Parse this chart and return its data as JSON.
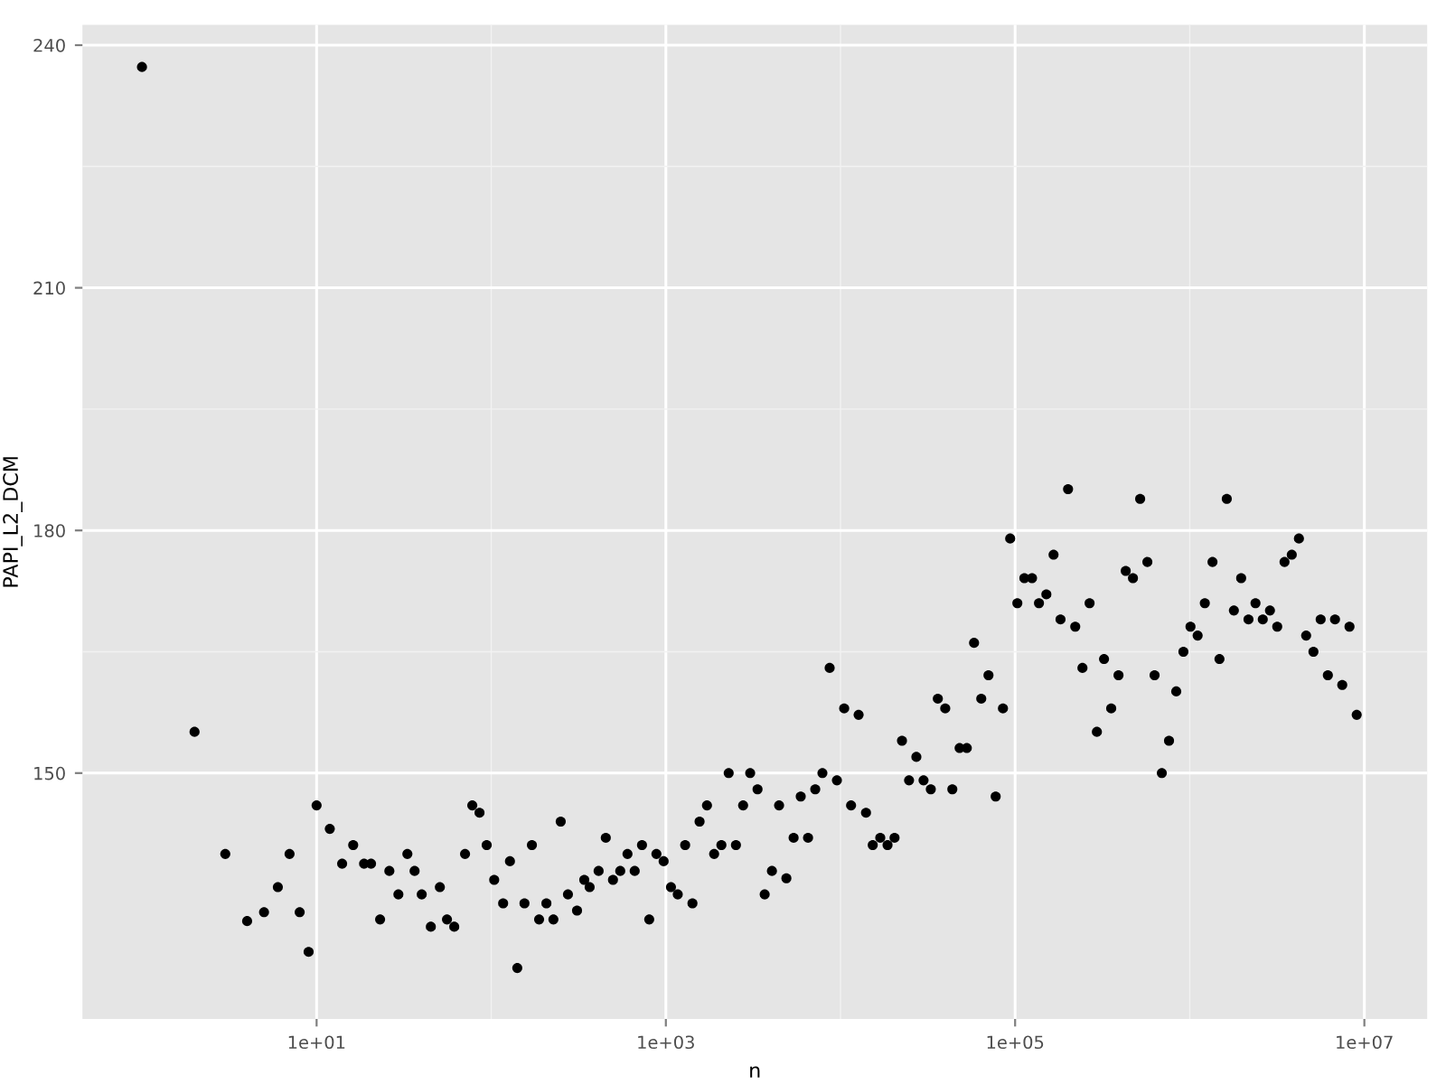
{
  "chart_data": {
    "type": "scatter",
    "xlabel": "n",
    "ylabel": "PAPI_L2_DCM",
    "log": "x",
    "grid": true,
    "marker": "circle",
    "xlim": [
      0.456,
      22900000
    ],
    "ylim": [
      119.6,
      242.5
    ],
    "xticks": [
      {
        "value": 10,
        "label": "1e+01"
      },
      {
        "value": 1000,
        "label": "1e+03"
      },
      {
        "value": 100000,
        "label": "1e+05"
      },
      {
        "value": 10000000,
        "label": "1e+07"
      }
    ],
    "yticks": [
      150,
      180,
      210,
      240
    ],
    "series": [
      {
        "color": "#000000",
        "x": [
          1,
          2,
          3,
          4,
          5,
          6,
          7,
          8,
          9,
          10,
          11.9,
          14.0,
          16.2,
          18.7,
          20.5,
          23.1,
          26.1,
          29.4,
          33.1,
          36.4,
          40.0,
          45.1,
          50.8,
          55.8,
          61.4,
          70.8,
          77.9,
          85.7,
          94.2,
          104,
          117,
          128,
          141,
          155,
          171,
          188,
          207,
          227,
          250,
          275,
          310,
          341,
          366,
          412,
          453,
          498,
          548,
          603,
          663,
          730,
          803,
          883,
          971,
          1070,
          1170,
          1290,
          1420,
          1560,
          1720,
          1890,
          2080,
          2290,
          2520,
          2770,
          3040,
          3350,
          3680,
          4050,
          4450,
          4900,
          5390,
          5920,
          6520,
          7170,
          7880,
          8670,
          9540,
          10500,
          11500,
          12700,
          14000,
          15300,
          16900,
          18600,
          20400,
          22500,
          24700,
          27200,
          29900,
          32900,
          36100,
          39800,
          43700,
          48100,
          52900,
          58200,
          64000,
          70400,
          77400,
          85200,
          93700,
          103000,
          113000,
          125000,
          137000,
          151000,
          166000,
          182000,
          201000,
          221000,
          243000,
          267000,
          294000,
          323000,
          355000,
          391000,
          430000,
          473000,
          520000,
          572000,
          629000,
          692000,
          761000,
          837000,
          920000,
          1010000,
          1110000,
          1220000,
          1350000,
          1480000,
          1630000,
          1790000,
          1970000,
          2170000,
          2380000,
          2620000,
          2880000,
          3170000,
          3490000,
          3840000,
          4220000,
          4640000,
          5110000,
          5620000,
          6180000,
          6790000,
          7470000,
          8220000,
          9040000
        ],
        "values": [
          237.3,
          155.1,
          140.0,
          131.7,
          132.8,
          135.9,
          140.0,
          132.8,
          127.9,
          146.0,
          143.1,
          138.8,
          141.1,
          138.8,
          138.8,
          131.9,
          137.9,
          135.0,
          140.0,
          137.9,
          135.0,
          131.0,
          135.9,
          131.9,
          131.0,
          140.0,
          146.0,
          145.1,
          141.1,
          136.8,
          133.9,
          139.1,
          125.9,
          133.9,
          141.1,
          131.9,
          133.9,
          131.9,
          144.0,
          135.0,
          133.0,
          136.8,
          135.9,
          137.9,
          142.0,
          136.8,
          137.9,
          140.0,
          137.9,
          141.1,
          131.9,
          140.0,
          139.1,
          135.9,
          135.0,
          141.1,
          133.9,
          144.0,
          146.0,
          140.0,
          141.1,
          150.0,
          141.1,
          146.0,
          150.0,
          148.0,
          135.0,
          137.9,
          146.0,
          137.0,
          142.0,
          147.1,
          142.0,
          148.0,
          150.0,
          163.0,
          149.1,
          158.0,
          146.0,
          157.2,
          145.1,
          141.1,
          142.0,
          141.1,
          142.0,
          154.0,
          149.1,
          152.0,
          149.1,
          148.0,
          159.2,
          158.0,
          148.0,
          153.1,
          153.1,
          166.1,
          159.2,
          162.1,
          147.1,
          158.0,
          179.0,
          171.0,
          174.1,
          174.1,
          171.0,
          172.1,
          177.0,
          169.0,
          185.1,
          168.1,
          163.0,
          171.0,
          155.1,
          164.1,
          158.0,
          162.1,
          175.0,
          174.1,
          183.9,
          176.1,
          162.1,
          150.0,
          154.0,
          160.1,
          165.0,
          168.1,
          167.0,
          171.0,
          176.1,
          164.1,
          183.9,
          170.1,
          174.1,
          169.0,
          171.0,
          169.0,
          170.1,
          168.1,
          176.1,
          177.0,
          179.0,
          167.0,
          165.0,
          169.0,
          162.1,
          169.0,
          160.9,
          168.1,
          157.2
        ]
      }
    ]
  }
}
